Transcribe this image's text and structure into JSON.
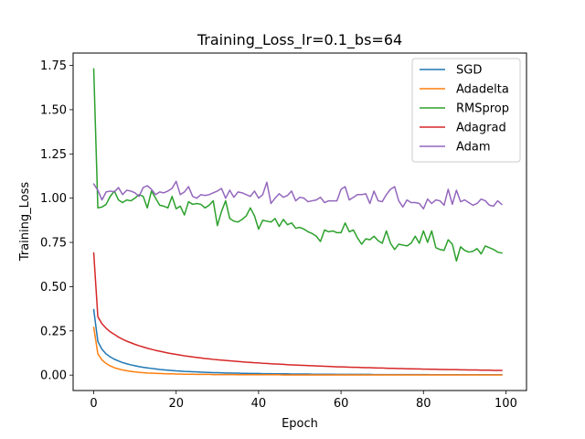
{
  "chart_data": {
    "type": "line",
    "title": "Training_Loss_lr=0.1_bs=64",
    "xlabel": "Epoch",
    "ylabel": "Training_Loss",
    "xlim": [
      -5,
      105
    ],
    "ylim": [
      -0.087,
      1.82
    ],
    "xticks": [
      0,
      20,
      40,
      60,
      80,
      100
    ],
    "yticks": [
      0.0,
      0.25,
      0.5,
      0.75,
      1.0,
      1.25,
      1.5,
      1.75
    ],
    "ytick_labels": [
      "0.00",
      "0.25",
      "0.50",
      "0.75",
      "1.00",
      "1.25",
      "1.50",
      "1.75"
    ],
    "grid": false,
    "legend_position": "top-right",
    "x": [
      0,
      1,
      2,
      3,
      4,
      5,
      6,
      7,
      8,
      9,
      10,
      11,
      12,
      13,
      14,
      15,
      16,
      17,
      18,
      19,
      20,
      21,
      22,
      23,
      24,
      25,
      26,
      27,
      28,
      29,
      30,
      31,
      32,
      33,
      34,
      35,
      36,
      37,
      38,
      39,
      40,
      41,
      42,
      43,
      44,
      45,
      46,
      47,
      48,
      49,
      50,
      51,
      52,
      53,
      54,
      55,
      56,
      57,
      58,
      59,
      60,
      61,
      62,
      63,
      64,
      65,
      66,
      67,
      68,
      69,
      70,
      71,
      72,
      73,
      74,
      75,
      76,
      77,
      78,
      79,
      80,
      81,
      82,
      83,
      84,
      85,
      86,
      87,
      88,
      89,
      90,
      91,
      92,
      93,
      94,
      95,
      96,
      97,
      98,
      99
    ],
    "series": [
      {
        "name": "SGD",
        "color": "#1f77b4",
        "values": [
          0.37,
          0.19,
          0.146,
          0.12,
          0.103,
          0.09,
          0.08,
          0.071,
          0.064,
          0.058,
          0.053,
          0.048,
          0.044,
          0.041,
          0.038,
          0.035,
          0.032,
          0.03,
          0.028,
          0.026,
          0.024,
          0.023,
          0.021,
          0.02,
          0.019,
          0.018,
          0.017,
          0.016,
          0.015,
          0.014,
          0.014,
          0.013,
          0.012,
          0.012,
          0.011,
          0.011,
          0.01,
          0.01,
          0.009,
          0.009,
          0.009,
          0.008,
          0.008,
          0.008,
          0.007,
          0.007,
          0.007,
          0.007,
          0.006,
          0.006,
          0.006,
          0.006,
          0.006,
          0.005,
          0.005,
          0.005,
          0.005,
          0.005,
          0.005,
          0.004,
          0.004,
          0.004,
          0.004,
          0.004,
          0.004,
          0.004,
          0.004,
          0.004,
          0.003,
          0.003,
          0.003,
          0.003,
          0.003,
          0.003,
          0.003,
          0.003,
          0.003,
          0.003,
          0.003,
          0.003,
          0.003,
          0.003,
          0.002,
          0.002,
          0.002,
          0.002,
          0.002,
          0.002,
          0.002,
          0.002,
          0.002,
          0.002,
          0.002,
          0.002,
          0.002,
          0.002,
          0.002,
          0.002,
          0.002,
          0.002
        ]
      },
      {
        "name": "Adadelta",
        "color": "#ff7f0e",
        "values": [
          0.27,
          0.12,
          0.086,
          0.066,
          0.052,
          0.042,
          0.035,
          0.029,
          0.025,
          0.021,
          0.018,
          0.016,
          0.014,
          0.012,
          0.011,
          0.01,
          0.009,
          0.008,
          0.007,
          0.007,
          0.006,
          0.006,
          0.005,
          0.005,
          0.005,
          0.004,
          0.004,
          0.004,
          0.004,
          0.003,
          0.003,
          0.003,
          0.003,
          0.003,
          0.003,
          0.002,
          0.002,
          0.002,
          0.002,
          0.002,
          0.002,
          0.002,
          0.002,
          0.002,
          0.002,
          0.002,
          0.001,
          0.001,
          0.001,
          0.001,
          0.001,
          0.001,
          0.001,
          0.001,
          0.001,
          0.001,
          0.001,
          0.001,
          0.001,
          0.001,
          0.001,
          0.001,
          0.001,
          0.001,
          0.001,
          0.001,
          0.001,
          0.001,
          0.001,
          0.001,
          0.001,
          0.001,
          0.001,
          0.001,
          0.001,
          0.001,
          0.001,
          0.001,
          0.001,
          0.001,
          0.001,
          0.001,
          0.001,
          0.001,
          0.001,
          0.001,
          0.001,
          0.001,
          0.001,
          0.001,
          0.001,
          0.001,
          0.001,
          0.001,
          0.001,
          0.001,
          0.001,
          0.001,
          0.001,
          0.001
        ]
      },
      {
        "name": "RMSprop",
        "color": "#2ca02c",
        "values": [
          1.73,
          0.945,
          0.95,
          0.965,
          1.01,
          1.04,
          0.99,
          0.975,
          0.99,
          0.985,
          1.0,
          1.02,
          1.01,
          0.945,
          1.04,
          1.0,
          0.96,
          0.955,
          0.945,
          1.01,
          0.94,
          0.955,
          0.905,
          0.98,
          0.965,
          0.97,
          0.965,
          0.945,
          0.96,
          0.985,
          0.845,
          0.925,
          0.985,
          0.885,
          0.87,
          0.865,
          0.88,
          0.9,
          0.945,
          0.9,
          0.825,
          0.875,
          0.87,
          0.865,
          0.885,
          0.84,
          0.88,
          0.85,
          0.86,
          0.83,
          0.835,
          0.825,
          0.81,
          0.8,
          0.785,
          0.755,
          0.82,
          0.81,
          0.815,
          0.805,
          0.805,
          0.86,
          0.81,
          0.82,
          0.775,
          0.74,
          0.77,
          0.765,
          0.785,
          0.76,
          0.745,
          0.815,
          0.745,
          0.71,
          0.74,
          0.735,
          0.73,
          0.745,
          0.785,
          0.745,
          0.815,
          0.75,
          0.815,
          0.72,
          0.71,
          0.705,
          0.765,
          0.74,
          0.645,
          0.725,
          0.705,
          0.695,
          0.7,
          0.715,
          0.685,
          0.73,
          0.72,
          0.71,
          0.695,
          0.69
        ]
      },
      {
        "name": "Adagrad",
        "color": "#d62728",
        "values": [
          0.69,
          0.33,
          0.29,
          0.265,
          0.245,
          0.23,
          0.215,
          0.203,
          0.192,
          0.183,
          0.174,
          0.166,
          0.159,
          0.152,
          0.146,
          0.14,
          0.135,
          0.13,
          0.125,
          0.121,
          0.117,
          0.113,
          0.109,
          0.106,
          0.103,
          0.1,
          0.097,
          0.094,
          0.092,
          0.089,
          0.087,
          0.085,
          0.083,
          0.081,
          0.079,
          0.077,
          0.075,
          0.073,
          0.072,
          0.07,
          0.069,
          0.067,
          0.066,
          0.064,
          0.063,
          0.062,
          0.061,
          0.059,
          0.058,
          0.057,
          0.056,
          0.055,
          0.054,
          0.053,
          0.052,
          0.051,
          0.05,
          0.049,
          0.048,
          0.047,
          0.047,
          0.046,
          0.045,
          0.044,
          0.044,
          0.043,
          0.042,
          0.042,
          0.041,
          0.04,
          0.04,
          0.039,
          0.038,
          0.038,
          0.037,
          0.037,
          0.036,
          0.036,
          0.035,
          0.035,
          0.034,
          0.034,
          0.033,
          0.033,
          0.032,
          0.032,
          0.031,
          0.031,
          0.031,
          0.03,
          0.03,
          0.029,
          0.029,
          0.029,
          0.028,
          0.028,
          0.028,
          0.027,
          0.027,
          0.027
        ]
      },
      {
        "name": "Adam",
        "color": "#9467bd",
        "values": [
          1.08,
          1.045,
          0.99,
          1.035,
          1.04,
          1.035,
          1.06,
          1.02,
          1.045,
          1.04,
          1.03,
          1.01,
          1.06,
          1.07,
          1.05,
          1.02,
          1.035,
          1.03,
          1.04,
          1.055,
          1.095,
          1.02,
          1.035,
          1.065,
          1.01,
          1.0,
          1.02,
          1.015,
          1.02,
          1.03,
          1.04,
          1.055,
          1.0,
          1.045,
          1.005,
          1.035,
          1.03,
          1.02,
          1.01,
          1.04,
          1.0,
          1.02,
          1.09,
          0.97,
          1.0,
          1.025,
          1.005,
          1.015,
          1.04,
          0.985,
          1.005,
          1.0,
          0.98,
          0.985,
          0.99,
          1.005,
          0.975,
          0.985,
          0.985,
          0.985,
          1.05,
          1.065,
          0.99,
          1.005,
          1.02,
          1.02,
          1.025,
          0.97,
          1.04,
          0.985,
          0.98,
          1.02,
          1.05,
          1.065,
          0.985,
          0.95,
          0.99,
          0.975,
          0.975,
          0.97,
          0.94,
          0.995,
          0.97,
          0.99,
          0.985,
          0.96,
          1.05,
          0.965,
          1.045,
          0.98,
          0.99,
          0.975,
          0.96,
          0.97,
          0.995,
          0.985,
          0.96,
          0.955,
          0.985,
          0.965
        ]
      }
    ]
  }
}
